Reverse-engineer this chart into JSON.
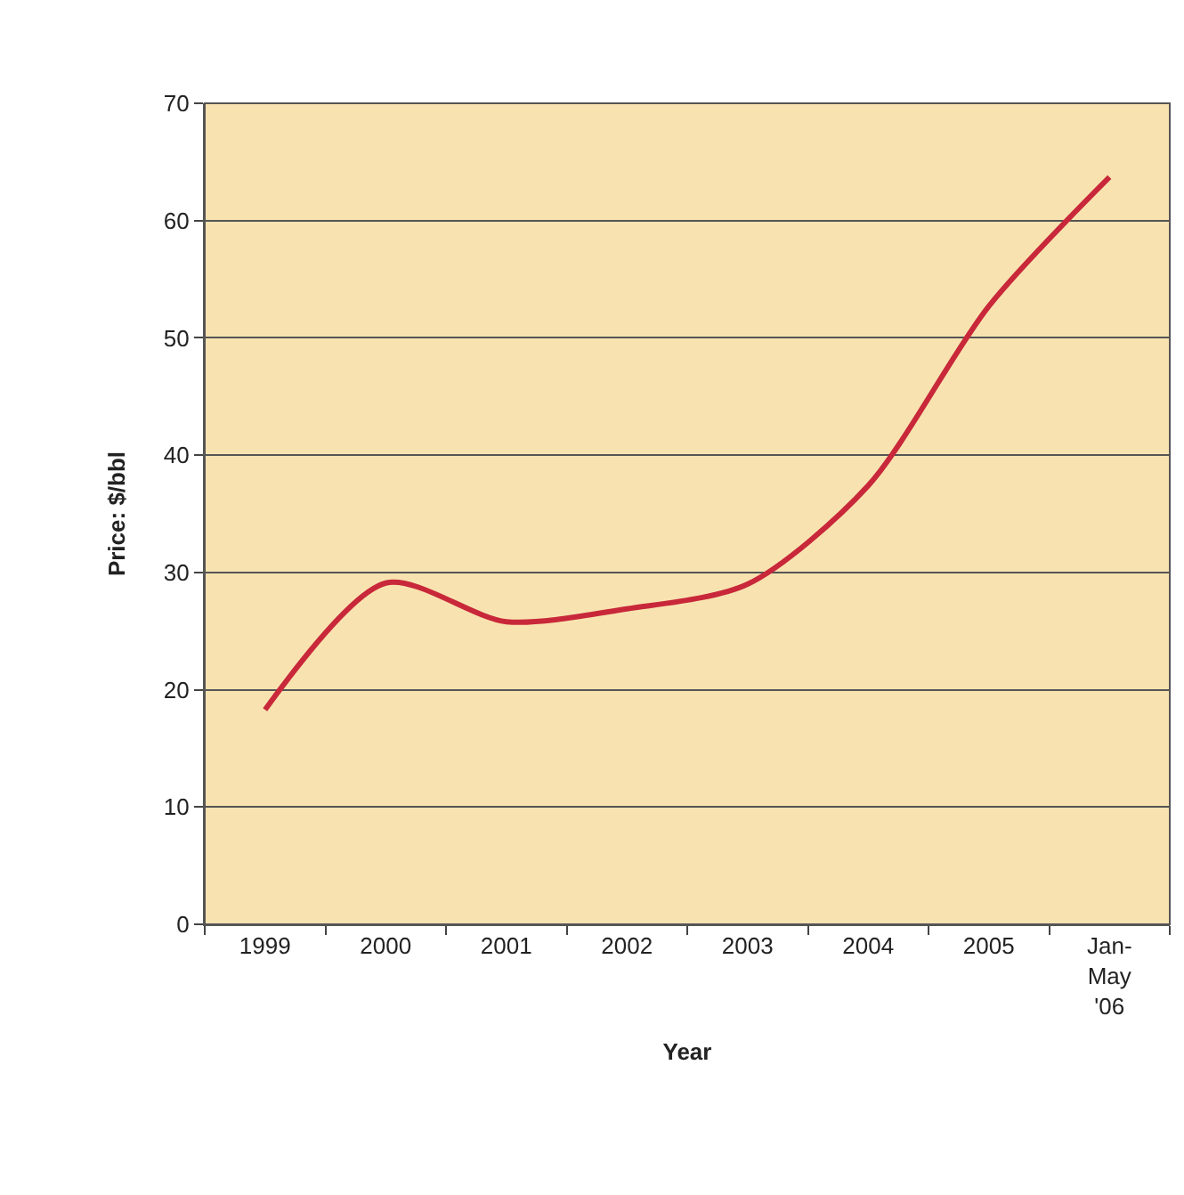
{
  "chart_data": {
    "type": "line",
    "xlabel": "Year",
    "ylabel": "Price: $/bbl",
    "categories": [
      "1999",
      "2000",
      "2001",
      "2002",
      "2003",
      "2004",
      "2005",
      "Jan-\nMay\n'06"
    ],
    "series": [
      {
        "color": "#c8283a",
        "values": [
          18.3,
          29.1,
          25.8,
          26.9,
          29.0,
          37.4,
          52.7,
          63.7
        ]
      }
    ],
    "ylim": [
      0,
      70
    ],
    "yticks": [
      0,
      10,
      20,
      30,
      40,
      50,
      60,
      70
    ],
    "grid": "y",
    "marker": "none",
    "line_style": "solid"
  }
}
